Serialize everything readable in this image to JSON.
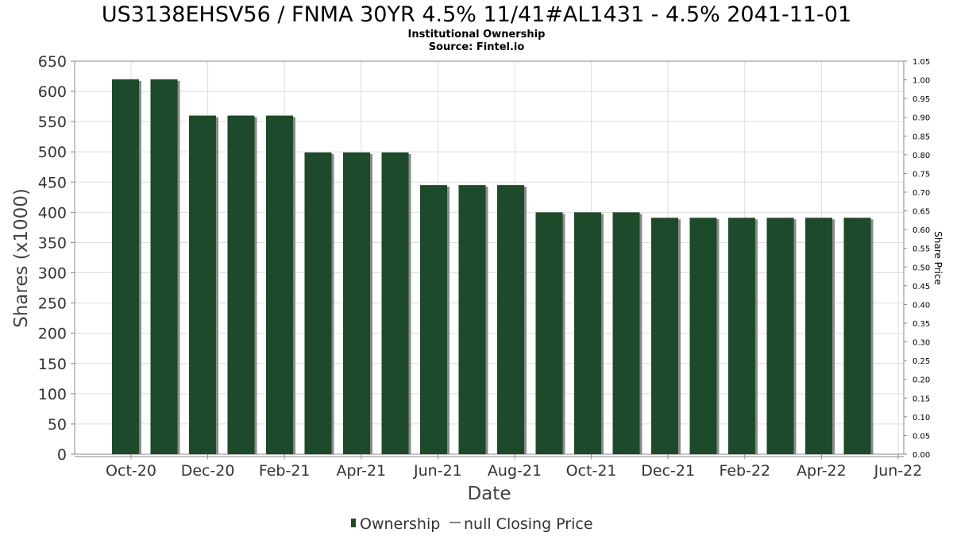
{
  "colors": {
    "bar": "#1d4a2a",
    "bar_shadow": "#8a8a8a",
    "grid": "#dddddd",
    "frame": "#888888"
  },
  "chart_data": {
    "type": "bar",
    "title": "US3138EHSV56 / FNMA 30YR 4.5% 11/41#AL1431 - 4.5% 2041-11-01",
    "subtitle_lines": [
      "Institutional Ownership",
      "Source: Fintel.io"
    ],
    "xlabel": "Date",
    "ylabel": "Shares (x1000)",
    "y2label": "Share Price",
    "ylim": [
      0,
      650
    ],
    "y2lim": [
      0,
      1.05
    ],
    "yticks": [
      "0",
      "50",
      "100",
      "150",
      "200",
      "250",
      "300",
      "350",
      "400",
      "450",
      "500",
      "550",
      "600",
      "650"
    ],
    "y2ticks": [
      "0.00",
      "0.05",
      "0.10",
      "0.15",
      "0.20",
      "0.25",
      "0.30",
      "0.35",
      "0.40",
      "0.45",
      "0.50",
      "0.55",
      "0.60",
      "0.65",
      "0.70",
      "0.75",
      "0.80",
      "0.85",
      "0.90",
      "0.95",
      "1.00",
      "1.05"
    ],
    "xticks": [
      "Oct-20",
      "Dec-20",
      "Feb-21",
      "Apr-21",
      "Jun-21",
      "Aug-21",
      "Oct-21",
      "Dec-21",
      "Feb-22",
      "Apr-22",
      "Jun-22"
    ],
    "grid": true,
    "legend_position": "bottom-center",
    "series": [
      {
        "name": "Ownership",
        "values": [
          620,
          620,
          560,
          560,
          560,
          499,
          499,
          499,
          445,
          445,
          445,
          400,
          400,
          400,
          391,
          391,
          391,
          391,
          391,
          391
        ]
      }
    ],
    "legend": [
      {
        "label": "Ownership",
        "marker": "bar"
      },
      {
        "label": "null Closing Price",
        "marker": "line"
      }
    ]
  }
}
